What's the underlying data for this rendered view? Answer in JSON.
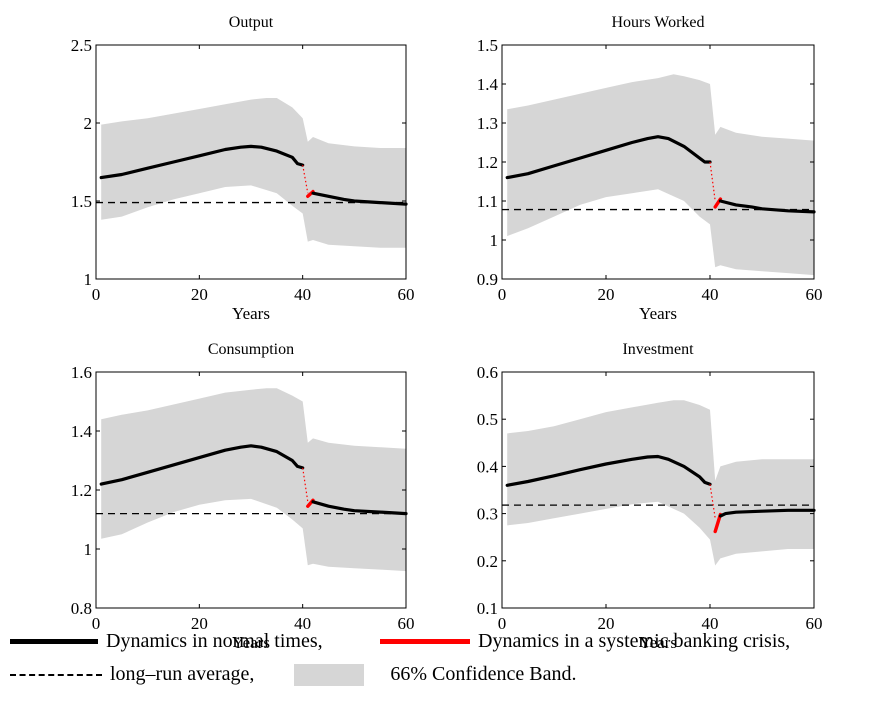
{
  "colors": {
    "normal": "#000000",
    "crisis": "#ff0000",
    "band": "#d6d6d6",
    "average": "#000000"
  },
  "legend": {
    "normal_label": "Dynamics in normal times,",
    "crisis_label": "Dynamics in a systemic banking crisis,",
    "average_label": "long–run average,",
    "band_label": "66% Confidence Band."
  },
  "chart_data": [
    {
      "type": "line",
      "title": "Output",
      "xlabel": "Years",
      "ylabel": "",
      "xlim": [
        0,
        60
      ],
      "ylim": [
        1,
        2.5
      ],
      "xticks": [
        0,
        20,
        40,
        60
      ],
      "yticks": [
        1,
        1.5,
        2,
        2.5
      ],
      "ytick_labels": [
        "1",
        "1.5",
        "2",
        "2.5"
      ],
      "long_run_average": 1.49,
      "normal": {
        "x": [
          1,
          5,
          10,
          15,
          20,
          25,
          28,
          30,
          32,
          35,
          38,
          39,
          40
        ],
        "y": [
          1.65,
          1.67,
          1.71,
          1.75,
          1.79,
          1.83,
          1.845,
          1.85,
          1.845,
          1.82,
          1.78,
          1.74,
          1.73
        ]
      },
      "transition": {
        "x": [
          40,
          41
        ],
        "y": [
          1.73,
          1.55
        ]
      },
      "crisis": {
        "x": [
          41,
          42
        ],
        "y": [
          1.53,
          1.56
        ]
      },
      "post": {
        "x": [
          42,
          45,
          48,
          50,
          55,
          60
        ],
        "y": [
          1.55,
          1.53,
          1.51,
          1.5,
          1.49,
          1.48
        ]
      },
      "band_upper": {
        "x": [
          1,
          5,
          10,
          15,
          20,
          25,
          30,
          33,
          35,
          38,
          40,
          41,
          42,
          45,
          50,
          55,
          60
        ],
        "y": [
          1.99,
          2.01,
          2.03,
          2.06,
          2.09,
          2.12,
          2.15,
          2.16,
          2.16,
          2.1,
          2.03,
          1.88,
          1.91,
          1.87,
          1.85,
          1.84,
          1.84
        ]
      },
      "band_lower": {
        "x": [
          1,
          5,
          10,
          15,
          20,
          25,
          30,
          35,
          38,
          40,
          41,
          42,
          45,
          50,
          55,
          60
        ],
        "y": [
          1.38,
          1.4,
          1.46,
          1.51,
          1.55,
          1.59,
          1.6,
          1.55,
          1.47,
          1.42,
          1.24,
          1.25,
          1.22,
          1.21,
          1.2,
          1.2
        ]
      }
    },
    {
      "type": "line",
      "title": "Hours Worked",
      "xlabel": "Years",
      "ylabel": "",
      "xlim": [
        0,
        60
      ],
      "ylim": [
        0.9,
        1.5
      ],
      "xticks": [
        0,
        20,
        40,
        60
      ],
      "yticks": [
        0.9,
        1,
        1.1,
        1.2,
        1.3,
        1.4,
        1.5
      ],
      "ytick_labels": [
        "0.9",
        "1",
        "1.1",
        "1.2",
        "1.3",
        "1.4",
        "1.5"
      ],
      "long_run_average": 1.078,
      "normal": {
        "x": [
          1,
          5,
          10,
          15,
          20,
          25,
          28,
          30,
          32,
          35,
          38,
          39,
          40
        ],
        "y": [
          1.16,
          1.17,
          1.19,
          1.21,
          1.23,
          1.25,
          1.26,
          1.265,
          1.26,
          1.24,
          1.21,
          1.2,
          1.2
        ]
      },
      "transition": {
        "x": [
          40,
          41
        ],
        "y": [
          1.2,
          1.1
        ]
      },
      "crisis": {
        "x": [
          41,
          42
        ],
        "y": [
          1.085,
          1.105
        ]
      },
      "post": {
        "x": [
          42,
          45,
          48,
          50,
          55,
          60
        ],
        "y": [
          1.1,
          1.09,
          1.085,
          1.08,
          1.075,
          1.072
        ]
      },
      "band_upper": {
        "x": [
          1,
          5,
          10,
          15,
          20,
          25,
          30,
          33,
          35,
          38,
          40,
          41,
          42,
          45,
          50,
          55,
          60
        ],
        "y": [
          1.335,
          1.345,
          1.36,
          1.375,
          1.39,
          1.405,
          1.415,
          1.425,
          1.42,
          1.41,
          1.4,
          1.27,
          1.29,
          1.275,
          1.265,
          1.26,
          1.255
        ]
      },
      "band_lower": {
        "x": [
          1,
          5,
          10,
          15,
          20,
          25,
          30,
          35,
          38,
          40,
          41,
          42,
          45,
          50,
          55,
          60
        ],
        "y": [
          1.01,
          1.03,
          1.06,
          1.09,
          1.11,
          1.12,
          1.13,
          1.1,
          1.06,
          1.04,
          0.93,
          0.935,
          0.925,
          0.92,
          0.915,
          0.91
        ]
      }
    },
    {
      "type": "line",
      "title": "Consumption",
      "xlabel": "Years",
      "ylabel": "",
      "xlim": [
        0,
        60
      ],
      "ylim": [
        0.8,
        1.6
      ],
      "xticks": [
        0,
        20,
        40,
        60
      ],
      "yticks": [
        0.8,
        1,
        1.2,
        1.4,
        1.6
      ],
      "ytick_labels": [
        "0.8",
        "1",
        "1.2",
        "1.4",
        "1.6"
      ],
      "long_run_average": 1.12,
      "normal": {
        "x": [
          1,
          5,
          10,
          15,
          20,
          25,
          28,
          30,
          32,
          35,
          38,
          39,
          40
        ],
        "y": [
          1.22,
          1.235,
          1.26,
          1.285,
          1.31,
          1.335,
          1.345,
          1.35,
          1.345,
          1.33,
          1.3,
          1.28,
          1.275
        ]
      },
      "transition": {
        "x": [
          40,
          41
        ],
        "y": [
          1.275,
          1.16
        ]
      },
      "crisis": {
        "x": [
          41,
          42
        ],
        "y": [
          1.145,
          1.165
        ]
      },
      "post": {
        "x": [
          42,
          45,
          48,
          50,
          55,
          60
        ],
        "y": [
          1.16,
          1.145,
          1.135,
          1.13,
          1.125,
          1.12
        ]
      },
      "band_upper": {
        "x": [
          1,
          5,
          10,
          15,
          20,
          25,
          30,
          33,
          35,
          38,
          40,
          41,
          42,
          45,
          50,
          55,
          60
        ],
        "y": [
          1.44,
          1.455,
          1.47,
          1.49,
          1.51,
          1.53,
          1.54,
          1.545,
          1.545,
          1.52,
          1.5,
          1.36,
          1.375,
          1.36,
          1.35,
          1.345,
          1.34
        ]
      },
      "band_lower": {
        "x": [
          1,
          5,
          10,
          15,
          20,
          25,
          30,
          35,
          38,
          40,
          41,
          42,
          45,
          50,
          55,
          60
        ],
        "y": [
          1.035,
          1.05,
          1.09,
          1.125,
          1.15,
          1.165,
          1.17,
          1.14,
          1.1,
          1.07,
          0.945,
          0.95,
          0.94,
          0.935,
          0.93,
          0.925
        ]
      }
    },
    {
      "type": "line",
      "title": "Investment",
      "xlabel": "Years",
      "ylabel": "",
      "xlim": [
        0,
        60
      ],
      "ylim": [
        0.1,
        0.6
      ],
      "xticks": [
        0,
        20,
        40,
        60
      ],
      "yticks": [
        0.1,
        0.2,
        0.3,
        0.4,
        0.5,
        0.6
      ],
      "ytick_labels": [
        "0.1",
        "0.2",
        "0.3",
        "0.4",
        "0.5",
        "0.6"
      ],
      "long_run_average": 0.318,
      "normal": {
        "x": [
          1,
          5,
          10,
          15,
          20,
          25,
          28,
          30,
          32,
          35,
          38,
          39,
          40
        ],
        "y": [
          0.36,
          0.368,
          0.38,
          0.393,
          0.405,
          0.415,
          0.42,
          0.421,
          0.415,
          0.4,
          0.378,
          0.366,
          0.362
        ]
      },
      "transition": {
        "x": [
          40,
          41
        ],
        "y": [
          0.362,
          0.29
        ]
      },
      "crisis": {
        "x": [
          41,
          42
        ],
        "y": [
          0.262,
          0.298
        ]
      },
      "post": {
        "x": [
          42,
          43,
          45,
          50,
          55,
          60
        ],
        "y": [
          0.295,
          0.3,
          0.303,
          0.305,
          0.307,
          0.307
        ]
      },
      "band_upper": {
        "x": [
          1,
          5,
          10,
          15,
          20,
          25,
          30,
          33,
          35,
          38,
          40,
          41,
          42,
          45,
          50,
          55,
          60
        ],
        "y": [
          0.47,
          0.475,
          0.485,
          0.5,
          0.515,
          0.525,
          0.535,
          0.54,
          0.54,
          0.53,
          0.52,
          0.37,
          0.4,
          0.41,
          0.415,
          0.415,
          0.415
        ]
      },
      "band_lower": {
        "x": [
          1,
          5,
          10,
          15,
          20,
          25,
          30,
          35,
          38,
          40,
          41,
          42,
          45,
          50,
          55,
          60
        ],
        "y": [
          0.275,
          0.28,
          0.29,
          0.3,
          0.31,
          0.32,
          0.325,
          0.3,
          0.27,
          0.245,
          0.19,
          0.205,
          0.215,
          0.22,
          0.225,
          0.225
        ]
      }
    }
  ]
}
